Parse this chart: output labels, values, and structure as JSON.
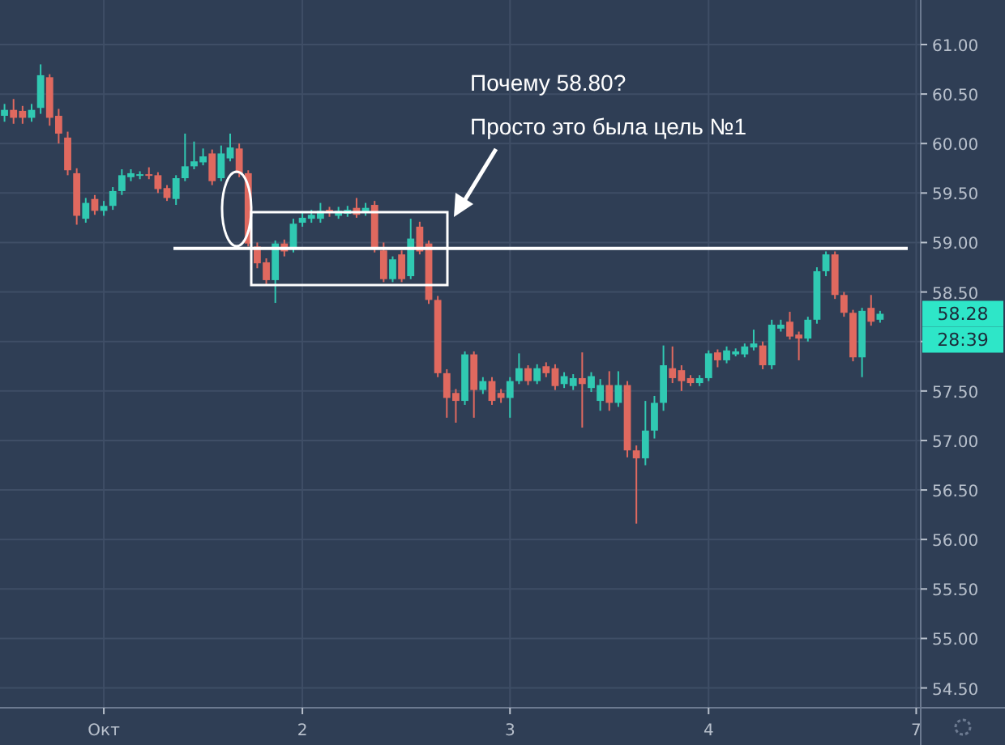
{
  "chart_data": {
    "type": "candlestick",
    "categories": [
      null,
      null,
      null,
      null,
      null,
      null,
      null,
      null,
      null,
      null,
      null,
      "Окт",
      null,
      null,
      null,
      null,
      null,
      null,
      null,
      null,
      null,
      null,
      null,
      null,
      null,
      null,
      null,
      null,
      null,
      null,
      null,
      null,
      null,
      "2",
      null,
      null,
      null,
      null,
      null,
      null,
      null,
      null,
      null,
      null,
      null,
      null,
      null,
      null,
      null,
      null,
      null,
      null,
      null,
      null,
      null,
      null,
      "3",
      null,
      null,
      null,
      null,
      null,
      null,
      null,
      null,
      null,
      null,
      null,
      null,
      null,
      null,
      null,
      null,
      null,
      null,
      null,
      null,
      null,
      "4",
      null,
      null,
      null,
      null,
      null,
      null,
      null,
      null,
      null,
      null,
      null,
      null,
      null,
      null,
      null,
      null,
      null,
      null,
      null,
      null,
      null,
      null,
      "7"
    ],
    "ohlc": [
      [
        60.28,
        60.4,
        60.22,
        60.34
      ],
      [
        60.34,
        60.45,
        60.2,
        60.26
      ],
      [
        60.33,
        60.38,
        60.2,
        60.26
      ],
      [
        60.26,
        60.4,
        60.22,
        60.34
      ],
      [
        60.36,
        60.8,
        60.3,
        60.69
      ],
      [
        60.67,
        60.7,
        60.18,
        60.26
      ],
      [
        60.28,
        60.35,
        60.0,
        60.1
      ],
      [
        60.06,
        60.12,
        59.68,
        59.73
      ],
      [
        59.7,
        59.75,
        59.18,
        59.27
      ],
      [
        59.24,
        59.45,
        59.2,
        59.4
      ],
      [
        59.44,
        59.48,
        59.28,
        59.32
      ],
      [
        59.32,
        59.42,
        59.27,
        59.37
      ],
      [
        59.37,
        59.56,
        59.33,
        59.52
      ],
      [
        59.52,
        59.74,
        59.48,
        59.68
      ],
      [
        59.66,
        59.74,
        59.62,
        59.7
      ],
      [
        59.68,
        59.72,
        59.64,
        59.69
      ],
      [
        59.69,
        59.76,
        59.64,
        59.68
      ],
      [
        59.68,
        59.71,
        59.5,
        59.54
      ],
      [
        59.55,
        59.58,
        59.42,
        59.45
      ],
      [
        59.44,
        59.68,
        59.38,
        59.65
      ],
      [
        59.65,
        60.1,
        59.62,
        59.77
      ],
      [
        59.77,
        60.02,
        59.74,
        59.82
      ],
      [
        59.81,
        59.95,
        59.78,
        59.87
      ],
      [
        59.9,
        59.94,
        59.58,
        59.62
      ],
      [
        59.65,
        59.98,
        59.62,
        59.9
      ],
      [
        59.85,
        60.1,
        59.82,
        59.96
      ],
      [
        59.95,
        60.0,
        59.66,
        59.7
      ],
      [
        59.7,
        59.73,
        58.96,
        58.99
      ],
      [
        58.96,
        59.0,
        58.74,
        58.79
      ],
      [
        58.8,
        58.84,
        58.58,
        58.62
      ],
      [
        58.62,
        59.02,
        58.39,
        58.99
      ],
      [
        58.99,
        59.03,
        58.86,
        58.91
      ],
      [
        58.94,
        59.24,
        58.9,
        59.19
      ],
      [
        59.2,
        59.3,
        59.16,
        59.25
      ],
      [
        59.24,
        59.33,
        59.2,
        59.28
      ],
      [
        59.24,
        59.4,
        59.2,
        59.32
      ],
      [
        59.33,
        59.36,
        59.26,
        59.3
      ],
      [
        59.27,
        59.36,
        59.24,
        59.32
      ],
      [
        59.29,
        59.37,
        59.26,
        59.33
      ],
      [
        59.35,
        59.45,
        59.25,
        59.28
      ],
      [
        59.3,
        59.4,
        59.27,
        59.35
      ],
      [
        59.38,
        59.42,
        58.9,
        58.94
      ],
      [
        58.92,
        59.0,
        58.6,
        58.63
      ],
      [
        58.63,
        58.86,
        58.6,
        58.83
      ],
      [
        58.88,
        58.92,
        58.6,
        58.63
      ],
      [
        58.66,
        59.24,
        58.63,
        59.04
      ],
      [
        59.16,
        59.21,
        58.88,
        58.91
      ],
      [
        58.99,
        59.02,
        58.38,
        58.42
      ],
      [
        58.42,
        58.46,
        57.64,
        57.68
      ],
      [
        57.68,
        57.72,
        57.23,
        57.43
      ],
      [
        57.48,
        57.52,
        57.18,
        57.4
      ],
      [
        57.4,
        57.9,
        57.36,
        57.87
      ],
      [
        57.87,
        57.9,
        57.23,
        57.51
      ],
      [
        57.51,
        57.64,
        57.47,
        57.6
      ],
      [
        57.6,
        57.64,
        57.36,
        57.4
      ],
      [
        57.48,
        57.52,
        57.38,
        57.43
      ],
      [
        57.43,
        57.64,
        57.23,
        57.6
      ],
      [
        57.6,
        57.88,
        57.57,
        57.73
      ],
      [
        57.73,
        57.76,
        57.56,
        57.6
      ],
      [
        57.6,
        57.77,
        57.57,
        57.73
      ],
      [
        57.75,
        57.79,
        57.64,
        57.68
      ],
      [
        57.73,
        57.77,
        57.51,
        57.55
      ],
      [
        57.57,
        57.69,
        57.53,
        57.65
      ],
      [
        57.55,
        57.67,
        57.51,
        57.63
      ],
      [
        57.63,
        57.89,
        57.13,
        57.57
      ],
      [
        57.53,
        57.69,
        57.49,
        57.65
      ],
      [
        57.4,
        57.62,
        57.3,
        57.56
      ],
      [
        57.56,
        57.7,
        57.3,
        57.38
      ],
      [
        57.38,
        57.7,
        57.34,
        57.56
      ],
      [
        57.56,
        57.6,
        56.83,
        56.9
      ],
      [
        56.9,
        56.95,
        56.16,
        56.82
      ],
      [
        56.82,
        57.4,
        56.75,
        57.1
      ],
      [
        57.1,
        57.45,
        57.02,
        57.38
      ],
      [
        57.38,
        57.96,
        57.3,
        57.76
      ],
      [
        57.73,
        57.95,
        57.58,
        57.63
      ],
      [
        57.71,
        57.76,
        57.5,
        57.6
      ],
      [
        57.63,
        57.66,
        57.55,
        57.58
      ],
      [
        57.58,
        57.66,
        57.55,
        57.63
      ],
      [
        57.63,
        57.91,
        57.6,
        57.88
      ],
      [
        57.89,
        57.92,
        57.74,
        57.81
      ],
      [
        57.81,
        57.95,
        57.78,
        57.91
      ],
      [
        57.87,
        57.93,
        57.85,
        57.9
      ],
      [
        57.87,
        57.98,
        57.84,
        57.95
      ],
      [
        57.94,
        58.12,
        57.91,
        57.98
      ],
      [
        57.96,
        58.0,
        57.72,
        57.76
      ],
      [
        57.76,
        58.22,
        57.72,
        58.17
      ],
      [
        58.13,
        58.22,
        58.1,
        58.17
      ],
      [
        58.2,
        58.3,
        58.02,
        58.05
      ],
      [
        58.07,
        58.1,
        57.81,
        58.03
      ],
      [
        58.03,
        58.25,
        58.0,
        58.22
      ],
      [
        58.22,
        58.75,
        58.18,
        58.71
      ],
      [
        58.71,
        58.91,
        58.66,
        58.88
      ],
      [
        58.88,
        58.91,
        58.43,
        58.47
      ],
      [
        58.47,
        58.5,
        58.25,
        58.29
      ],
      [
        58.29,
        58.32,
        57.8,
        57.84
      ],
      [
        57.84,
        58.34,
        57.64,
        58.31
      ],
      [
        58.34,
        58.47,
        58.16,
        58.2
      ],
      [
        58.22,
        58.31,
        58.19,
        58.28
      ],
      null,
      null,
      null,
      null
    ],
    "colors": [
      "#30c9b2",
      "#e0695f",
      "#e0695f",
      "#30c9b2",
      "#30c9b2",
      "#e0695f",
      "#e0695f",
      "#e0695f",
      "#e0695f",
      "#30c9b2",
      "#e0695f",
      "#30c9b2",
      "#30c9b2",
      "#30c9b2",
      "#30c9b2",
      "#30c9b2",
      "#e0695f",
      "#e0695f",
      "#e0695f",
      "#30c9b2",
      "#30c9b2",
      "#30c9b2",
      "#30c9b2",
      "#e0695f",
      "#30c9b2",
      "#30c9b2",
      "#e0695f",
      "#e0695f",
      "#e0695f",
      "#e0695f",
      "#30c9b2",
      "#e0695f",
      "#30c9b2",
      "#30c9b2",
      "#30c9b2",
      "#30c9b2",
      "#e0695f",
      "#30c9b2",
      "#30c9b2",
      "#e0695f",
      "#30c9b2",
      "#e0695f",
      "#e0695f",
      "#30c9b2",
      "#e0695f",
      "#30c9b2",
      "#e0695f",
      "#e0695f",
      "#e0695f",
      "#e0695f",
      "#e0695f",
      "#30c9b2",
      "#e0695f",
      "#30c9b2",
      "#e0695f",
      "#e0695f",
      "#30c9b2",
      "#30c9b2",
      "#e0695f",
      "#30c9b2",
      "#e0695f",
      "#e0695f",
      "#30c9b2",
      "#30c9b2",
      "#e0695f",
      "#30c9b2",
      "#30c9b2",
      "#e0695f",
      "#30c9b2",
      "#e0695f",
      "#e0695f",
      "#30c9b2",
      "#30c9b2",
      "#30c9b2",
      "#e0695f",
      "#e0695f",
      "#e0695f",
      "#30c9b2",
      "#30c9b2",
      "#e0695f",
      "#30c9b2",
      "#30c9b2",
      "#30c9b2",
      "#30c9b2",
      "#e0695f",
      "#30c9b2",
      "#30c9b2",
      "#e0695f",
      "#e0695f",
      "#30c9b2",
      "#30c9b2",
      "#30c9b2",
      "#e0695f",
      "#e0695f",
      "#e0695f",
      "#30c9b2",
      "#e0695f",
      "#30c9b2",
      null,
      null,
      null,
      null
    ],
    "ylim": [
      54.3,
      61.45
    ],
    "yticks": [
      {
        "value": 54.5,
        "label": "54.50"
      },
      {
        "value": 55,
        "label": "55.00"
      },
      {
        "value": 55.5,
        "label": "55.50"
      },
      {
        "value": 56,
        "label": "56.00"
      },
      {
        "value": 56.5,
        "label": "56.50"
      },
      {
        "value": 57,
        "label": "57.00"
      },
      {
        "value": 57.5,
        "label": "57.50"
      },
      {
        "value": 58,
        "label": null
      },
      {
        "value": 58.5,
        "label": "58.50"
      },
      {
        "value": 59,
        "label": "59.00"
      },
      {
        "value": 59.5,
        "label": "59.50"
      },
      {
        "value": 60,
        "label": "60.00"
      },
      {
        "value": 60.5,
        "label": "60.50"
      },
      {
        "value": 61,
        "label": "61.00"
      }
    ],
    "grid": true,
    "ref_lines": [
      {
        "axis": "y",
        "value": 58.94,
        "color": "#ffffff"
      }
    ],
    "annotations": [
      "Почему 58.80?",
      "Просто это была цель №1",
      "58.28",
      "28:39"
    ]
  }
}
